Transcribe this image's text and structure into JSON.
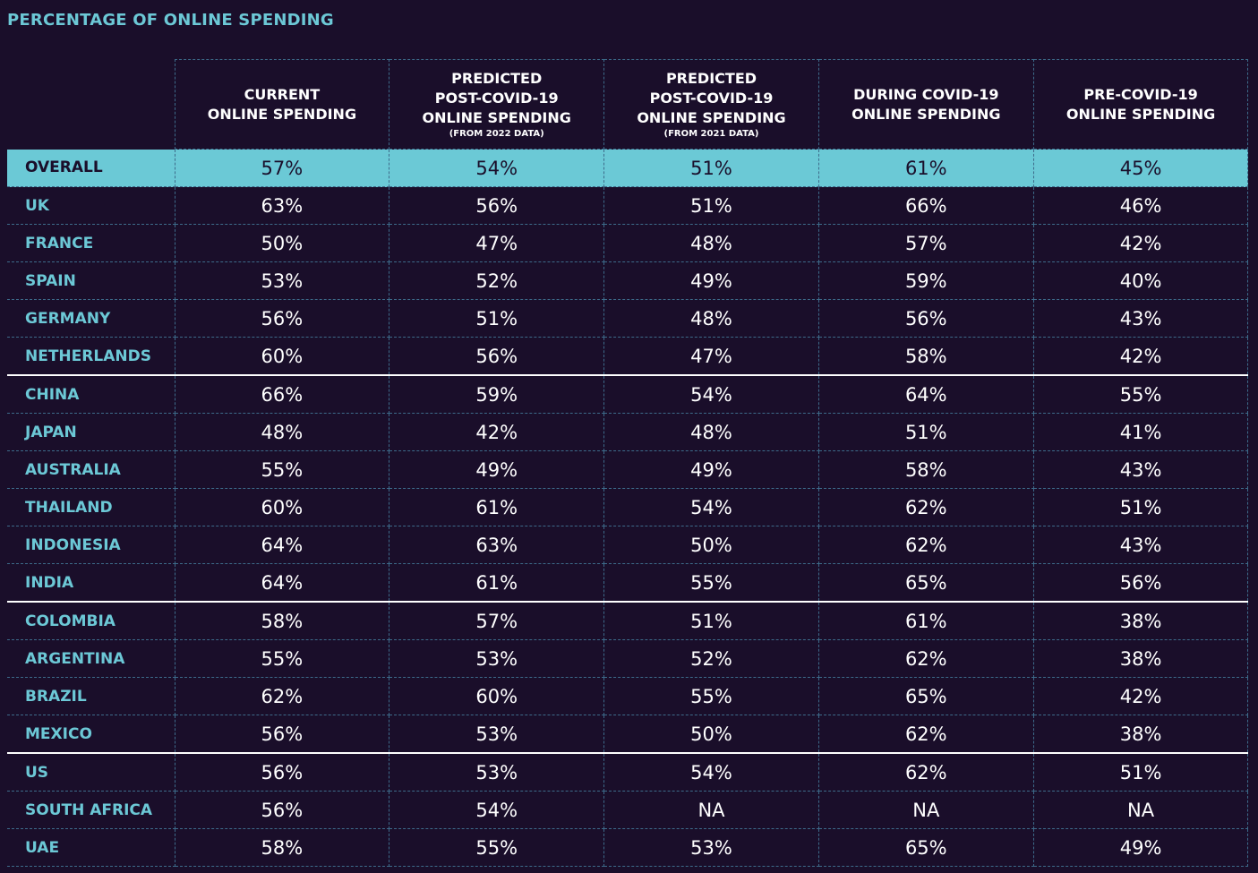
{
  "title": "PERCENTAGE OF ONLINE SPENDING",
  "chart_data": {
    "type": "table",
    "title": "PERCENTAGE OF ONLINE SPENDING",
    "columns": [
      {
        "label": "CURRENT\nONLINE SPENDING",
        "sub": ""
      },
      {
        "label": "PREDICTED\nPOST-COVID-19\nONLINE SPENDING",
        "sub": "(FROM 2022 DATA)"
      },
      {
        "label": "PREDICTED\nPOST-COVID-19\nONLINE SPENDING",
        "sub": "(FROM 2021 DATA)"
      },
      {
        "label": "DURING COVID-19\nONLINE SPENDING",
        "sub": ""
      },
      {
        "label": "PRE-COVID-19\nONLINE SPENDING",
        "sub": ""
      }
    ],
    "rows": [
      {
        "label": "OVERALL",
        "values": [
          "57%",
          "54%",
          "51%",
          "61%",
          "45%"
        ]
      },
      {
        "label": "UK",
        "values": [
          "63%",
          "56%",
          "51%",
          "66%",
          "46%"
        ]
      },
      {
        "label": "FRANCE",
        "values": [
          "50%",
          "47%",
          "48%",
          "57%",
          "42%"
        ]
      },
      {
        "label": "SPAIN",
        "values": [
          "53%",
          "52%",
          "49%",
          "59%",
          "40%"
        ]
      },
      {
        "label": "GERMANY",
        "values": [
          "56%",
          "51%",
          "48%",
          "56%",
          "43%"
        ]
      },
      {
        "label": "NETHERLANDS",
        "values": [
          "60%",
          "56%",
          "47%",
          "58%",
          "42%"
        ]
      },
      {
        "label": "CHINA",
        "values": [
          "66%",
          "59%",
          "54%",
          "64%",
          "55%"
        ]
      },
      {
        "label": "JAPAN",
        "values": [
          "48%",
          "42%",
          "48%",
          "51%",
          "41%"
        ]
      },
      {
        "label": "AUSTRALIA",
        "values": [
          "55%",
          "49%",
          "49%",
          "58%",
          "43%"
        ]
      },
      {
        "label": "THAILAND",
        "values": [
          "60%",
          "61%",
          "54%",
          "62%",
          "51%"
        ]
      },
      {
        "label": "INDONESIA",
        "values": [
          "64%",
          "63%",
          "50%",
          "62%",
          "43%"
        ]
      },
      {
        "label": "INDIA",
        "values": [
          "64%",
          "61%",
          "55%",
          "65%",
          "56%"
        ]
      },
      {
        "label": "COLOMBIA",
        "values": [
          "58%",
          "57%",
          "51%",
          "61%",
          "38%"
        ]
      },
      {
        "label": "ARGENTINA",
        "values": [
          "55%",
          "53%",
          "52%",
          "62%",
          "38%"
        ]
      },
      {
        "label": "BRAZIL",
        "values": [
          "62%",
          "60%",
          "55%",
          "65%",
          "42%"
        ]
      },
      {
        "label": "MEXICO",
        "values": [
          "56%",
          "53%",
          "50%",
          "62%",
          "38%"
        ]
      },
      {
        "label": "US",
        "values": [
          "56%",
          "53%",
          "54%",
          "62%",
          "51%"
        ]
      },
      {
        "label": "SOUTH AFRICA",
        "values": [
          "56%",
          "54%",
          "NA",
          "NA",
          "NA"
        ]
      },
      {
        "label": "UAE",
        "values": [
          "58%",
          "55%",
          "53%",
          "65%",
          "49%"
        ]
      }
    ],
    "highlight_row": "OVERALL",
    "group_ends": [
      "NETHERLANDS",
      "INDIA",
      "MEXICO"
    ],
    "colors": {
      "background": "#1a0e2a",
      "accent": "#6bc9d6",
      "text": "#ffffff",
      "grid": "#3d6b8a"
    }
  }
}
